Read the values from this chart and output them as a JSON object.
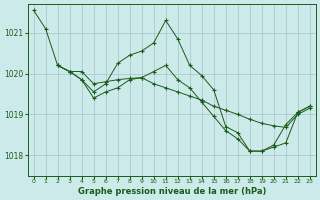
{
  "title": "Graphe pression niveau de la mer (hPa)",
  "background_color": "#cceaea",
  "grid_color": "#aacccc",
  "line_color": "#1a5c1a",
  "xlim": [
    -0.5,
    23.5
  ],
  "ylim": [
    1017.5,
    1021.7
  ],
  "yticks": [
    1018,
    1019,
    1020,
    1021
  ],
  "xtick_labels": [
    "0",
    "1",
    "2",
    "3",
    "4",
    "5",
    "6",
    "7",
    "8",
    "9",
    "10",
    "11",
    "12",
    "13",
    "14",
    "15",
    "16",
    "17",
    "18",
    "19",
    "20",
    "21",
    "22",
    "23"
  ],
  "series1_x": [
    0,
    1,
    2,
    3,
    4,
    5,
    6,
    7,
    8,
    9,
    10,
    11,
    12,
    13,
    14,
    15,
    16,
    17,
    18,
    19,
    20,
    21,
    22,
    23
  ],
  "series1_y": [
    1021.55,
    1021.1,
    1020.2,
    1020.05,
    1020.05,
    1019.75,
    1019.8,
    1019.85,
    1019.88,
    1019.9,
    1019.75,
    1019.65,
    1019.55,
    1019.45,
    1019.35,
    1019.2,
    1019.1,
    1019.0,
    1018.88,
    1018.78,
    1018.72,
    1018.68,
    1019.0,
    1019.15
  ],
  "series2_x": [
    2,
    3,
    4,
    5,
    6,
    7,
    8,
    9,
    10,
    11,
    12,
    13,
    14,
    15,
    16,
    17,
    18,
    19,
    20,
    21,
    22,
    23
  ],
  "series2_y": [
    1020.2,
    1020.05,
    1019.85,
    1019.55,
    1019.75,
    1020.25,
    1020.45,
    1020.55,
    1020.75,
    1021.3,
    1020.85,
    1020.2,
    1019.95,
    1019.6,
    1018.7,
    1018.55,
    1018.1,
    1018.1,
    1018.2,
    1018.3,
    1019.05,
    1019.2
  ],
  "series3_x": [
    2,
    3,
    4,
    5,
    6,
    7,
    8,
    9,
    10,
    11,
    12,
    13,
    14,
    15,
    16,
    17,
    18,
    19,
    20,
    21,
    22,
    23
  ],
  "series3_y": [
    1020.2,
    1020.05,
    1019.85,
    1019.4,
    1019.55,
    1019.65,
    1019.85,
    1019.9,
    1020.05,
    1020.2,
    1019.85,
    1019.65,
    1019.3,
    1018.95,
    1018.6,
    1018.4,
    1018.1,
    1018.1,
    1018.25,
    1018.75,
    1019.05,
    1019.2
  ]
}
